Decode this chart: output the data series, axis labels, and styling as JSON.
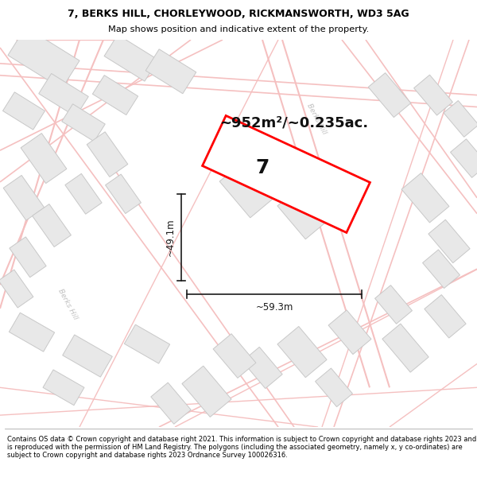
{
  "title_line1": "7, BERKS HILL, CHORLEYWOOD, RICKMANSWORTH, WD3 5AG",
  "title_line2": "Map shows position and indicative extent of the property.",
  "footer_text": "Contains OS data © Crown copyright and database right 2021. This information is subject to Crown copyright and database rights 2023 and is reproduced with the permission of HM Land Registry. The polygons (including the associated geometry, namely x, y co-ordinates) are subject to Crown copyright and database rights 2023 Ordnance Survey 100026316.",
  "area_label": "~952m²/~0.235ac.",
  "width_label": "~59.3m",
  "height_label": "~49.1m",
  "plot_number": "7",
  "map_bg": "#f9f9f9",
  "building_fill": "#e8e8e8",
  "building_edge": "#c8c8c8",
  "road_color": "#f5c0c0",
  "plot_color": "#ff0000",
  "dim_color": "#1a1a1a",
  "title_bg": "#ffffff",
  "footer_bg": "#ffffff",
  "road_label_color": "#c0c0c0",
  "title_fontsize": 9.0,
  "subtitle_fontsize": 8.2,
  "area_fontsize": 13,
  "plot_num_fontsize": 18,
  "dim_fontsize": 8.5,
  "footer_fontsize": 6.0
}
